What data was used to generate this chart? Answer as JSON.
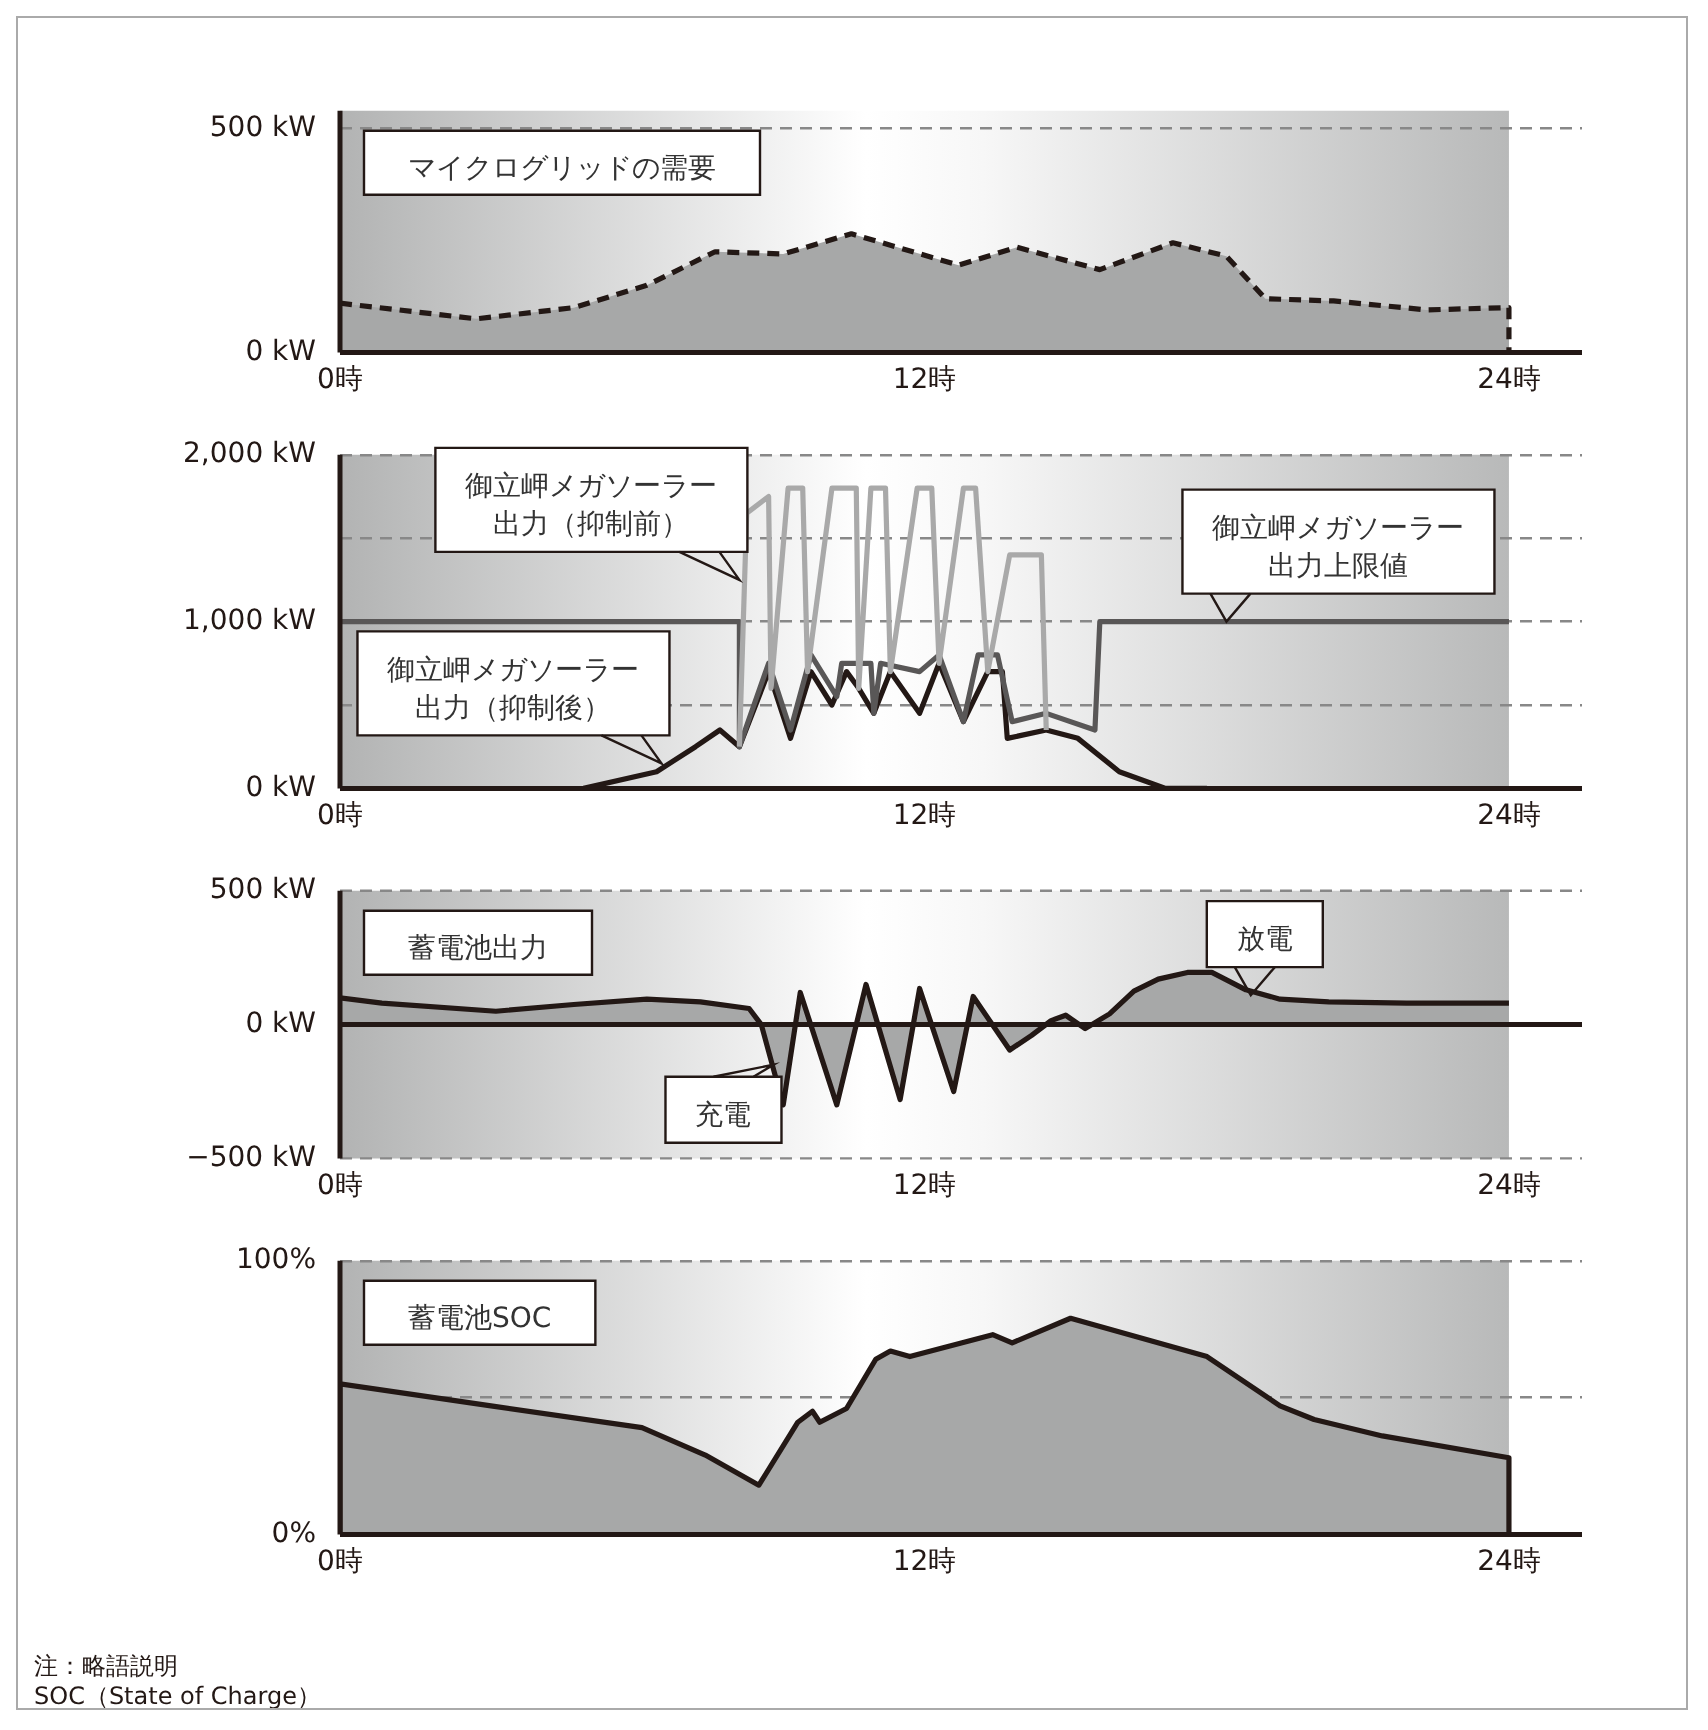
{
  "chart_data": [
    {
      "type": "area",
      "title": "マイクログリッドの需要",
      "xlim": [
        0,
        25.5
      ],
      "xticks": [
        {
          "value": 0,
          "label": "0時"
        },
        {
          "value": 12,
          "label": "12時"
        },
        {
          "value": 24,
          "label": "24時"
        }
      ],
      "ylim": [
        0,
        540
      ],
      "yticks": [
        {
          "value": 0,
          "label": "0 kW"
        },
        {
          "value": 500,
          "label": "500 kW"
        }
      ],
      "grid": "y",
      "line_style": "dashed",
      "series": [
        {
          "color": "#231815",
          "x": [
            0,
            2.8,
            4.8,
            6.3,
            7.7,
            9.1,
            10.5,
            12.7,
            13.9,
            15.6,
            17.1,
            18.2,
            19,
            20.4,
            22.3,
            24,
            24
          ],
          "values": [
            110,
            75,
            100,
            150,
            225,
            220,
            265,
            195,
            235,
            185,
            245,
            215,
            120,
            115,
            95,
            100,
            0
          ]
        }
      ]
    },
    {
      "type": "line",
      "xlim": [
        0,
        25.5
      ],
      "xticks": [
        {
          "value": 0,
          "label": "0時"
        },
        {
          "value": 12,
          "label": "12時"
        },
        {
          "value": 24,
          "label": "24時"
        }
      ],
      "ylim": [
        0,
        2000
      ],
      "yticks": [
        {
          "value": 0,
          "label": "0 kW"
        },
        {
          "value": 500,
          "label": null
        },
        {
          "value": 1000,
          "label": "1,000 kW"
        },
        {
          "value": 1500,
          "label": null
        },
        {
          "value": 2000,
          "label": "2,000 kW"
        }
      ],
      "grid": "y",
      "series": [
        {
          "color": "#a9a9a9",
          "x": [
            8.2,
            8.35,
            8.8,
            8.85,
            9.2,
            9.5,
            9.6,
            10.1,
            10.6,
            10.65,
            10.9,
            11.2,
            11.3,
            11.85,
            12.15,
            12.3,
            12.8,
            13.05,
            13.3,
            13.75,
            14.4,
            14.5
          ],
          "values": [
            250,
            1650,
            1750,
            600,
            1800,
            1800,
            700,
            1800,
            1800,
            600,
            1800,
            1800,
            700,
            1800,
            1800,
            750,
            1800,
            1800,
            700,
            1400,
            1400,
            350
          ]
        },
        {
          "color": "#595757",
          "x": [
            0,
            8.2,
            8.2,
            8.8,
            9.25,
            9.67,
            10.2,
            10.3,
            10.9,
            10.96,
            11.1,
            11.9,
            12.3,
            12.8,
            13.1,
            13.5,
            13.8,
            14.5,
            15.5,
            15.6,
            24
          ],
          "values": [
            1000,
            1000,
            250,
            750,
            350,
            800,
            550,
            750,
            750,
            450,
            750,
            700,
            800,
            400,
            800,
            800,
            400,
            450,
            350,
            1000,
            1000
          ]
        },
        {
          "color": "#231815",
          "x": [
            5,
            6.5,
            7.3,
            7.8,
            8.2,
            8.8,
            9.25,
            9.67,
            10.1,
            10.4,
            10.65,
            10.96,
            11.3,
            11.9,
            12.3,
            12.8,
            13.3,
            13.6,
            13.7,
            14.5,
            15.15,
            16,
            16.95,
            17.8
          ],
          "values": [
            0,
            100,
            250,
            350,
            250,
            700,
            300,
            700,
            500,
            700,
            600,
            450,
            700,
            450,
            750,
            400,
            700,
            700,
            300,
            350,
            300,
            100,
            0,
            0
          ]
        }
      ],
      "annotations": [
        {
          "text": "御立岬メガソーラー出力（抑制前）",
          "x": 8.2,
          "y": 1250
        },
        {
          "text": "御立岬メガソーラー出力上限値",
          "x": 18.2,
          "y": 1000
        },
        {
          "text": "御立岬メガソーラー出力（抑制後）",
          "x": 6.6,
          "y": 150
        }
      ]
    },
    {
      "type": "area",
      "title": "蓄電池出力",
      "xlim": [
        0,
        25.5
      ],
      "xticks": [
        {
          "value": 0,
          "label": "0時"
        },
        {
          "value": 12,
          "label": "12時"
        },
        {
          "value": 24,
          "label": "24時"
        }
      ],
      "ylim": [
        -500,
        500
      ],
      "yticks": [
        {
          "value": -500,
          "label": "−500 kW"
        },
        {
          "value": 0,
          "label": "0 kW"
        },
        {
          "value": 500,
          "label": "500 kW"
        }
      ],
      "ref_lines": [
        {
          "axis": "y",
          "value": 500,
          "color": "#888888",
          "line_style": "dashed"
        },
        {
          "axis": "y",
          "value": -500,
          "color": "#888888",
          "line_style": "dashed"
        }
      ],
      "series": [
        {
          "color": "#231815",
          "x": [
            0,
            0.86,
            3.2,
            4.8,
            6.3,
            7.4,
            8.4,
            8.65,
            9.1,
            9.45,
            10.2,
            10.8,
            11.5,
            11.9,
            12.6,
            13,
            13.75,
            14.2,
            14.6,
            14.9,
            15.3,
            15.8,
            16.3,
            16.8,
            17.4,
            17.9,
            18.6,
            19.3,
            20.3,
            21.9,
            24
          ],
          "values": [
            100,
            80,
            50,
            75,
            95,
            85,
            60,
            0,
            -300,
            120,
            -300,
            150,
            -280,
            135,
            -250,
            105,
            -95,
            -40,
            15,
            35,
            -15,
            40,
            125,
            170,
            195,
            195,
            130,
            95,
            85,
            80,
            80
          ]
        }
      ],
      "annotations": [
        {
          "text": "充電",
          "x": 8.9,
          "y": -150
        },
        {
          "text": "放電",
          "x": 18.7,
          "y": 110
        }
      ]
    },
    {
      "type": "area",
      "title": "蓄電池SOC",
      "xlim": [
        0,
        25.5
      ],
      "xticks": [
        {
          "value": 0,
          "label": "0時"
        },
        {
          "value": 12,
          "label": "12時"
        },
        {
          "value": 24,
          "label": "24時"
        }
      ],
      "ylim": [
        0,
        100
      ],
      "yticks": [
        {
          "value": 0,
          "label": "0%"
        },
        {
          "value": 50,
          "label": null
        },
        {
          "value": 100,
          "label": "100%"
        }
      ],
      "grid": "y",
      "series": [
        {
          "color": "#231815",
          "x": [
            0,
            0,
            3.1,
            6.2,
            7.5,
            8.6,
            9.4,
            9.7,
            9.85,
            10.4,
            11,
            11.3,
            11.7,
            13.4,
            13.8,
            15,
            17.8,
            19.3,
            20,
            21.4,
            24,
            24
          ],
          "values": [
            0,
            55,
            47,
            39,
            29,
            18,
            41,
            45,
            41,
            46,
            64,
            67,
            65,
            73,
            70,
            79,
            65,
            47,
            42,
            36,
            28,
            0
          ]
        }
      ],
      "annotations": [
        "注：略語説明",
        "SOC（State of Charge）"
      ]
    }
  ]
}
